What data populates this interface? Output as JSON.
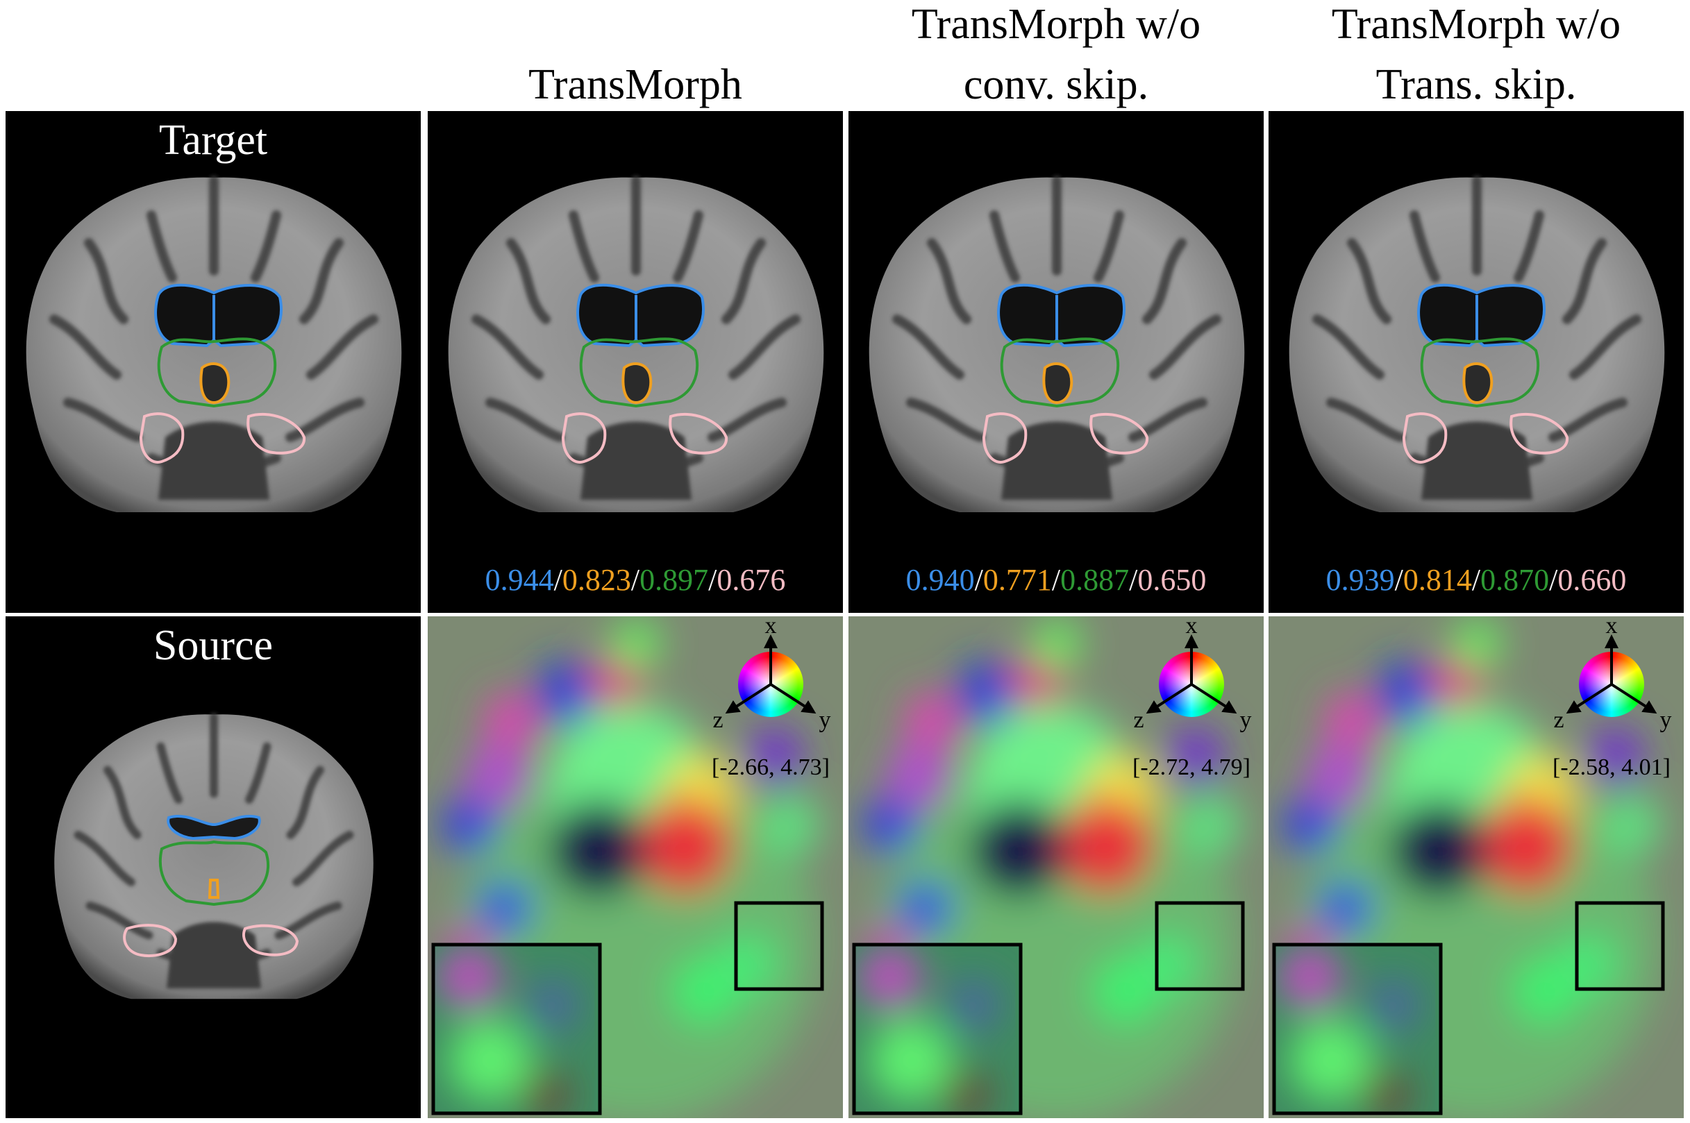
{
  "header": {
    "row_labels": [
      "Target",
      "Source"
    ]
  },
  "columns": [
    {
      "title_lines": [
        "TransMorph"
      ],
      "scores": [
        "0.944",
        "0.823",
        "0.897",
        "0.676"
      ],
      "range": "[-2.66, 4.73]"
    },
    {
      "title_lines": [
        "TransMorph w/o",
        "conv. skip."
      ],
      "scores": [
        "0.940",
        "0.771",
        "0.887",
        "0.650"
      ],
      "range": "[-2.72, 4.79]"
    },
    {
      "title_lines": [
        "TransMorph w/o",
        "Trans. skip."
      ],
      "scores": [
        "0.939",
        "0.814",
        "0.870",
        "0.660"
      ],
      "range": "[-2.58, 4.01]"
    }
  ],
  "score_separator": "/",
  "axis_labels": {
    "x": "x",
    "y": "y",
    "z": "z"
  }
}
